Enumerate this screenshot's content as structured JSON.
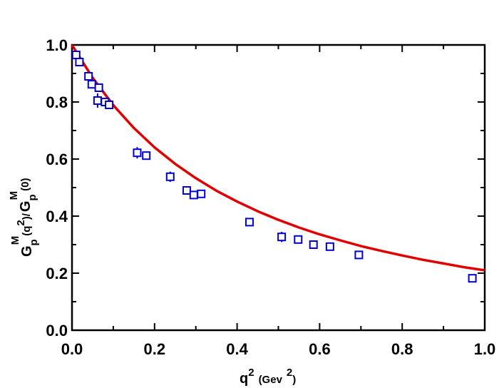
{
  "chart_data": {
    "type": "scatter",
    "title": "",
    "xlabel": {
      "base": "q",
      "sup": "2",
      "unit": "(Gev",
      "unit_sup": "2",
      "unit_close": ")"
    },
    "ylabel": {
      "num_base": "G",
      "num_sub": "p",
      "num_sup": "M",
      "num_arg": "(q",
      "num_arg_sup": "2",
      "num_arg_close": ")/",
      "den_base": "G",
      "den_sub": "p",
      "den_sup": "M",
      "den_arg": "(0)"
    },
    "xlim": [
      0.0,
      1.0
    ],
    "ylim": [
      0.0,
      1.0
    ],
    "xticks": [
      "0.0",
      "0.2",
      "0.4",
      "0.6",
      "0.8",
      "1.0"
    ],
    "yticks": [
      "0.0",
      "0.2",
      "0.4",
      "0.6",
      "0.8",
      "1.0"
    ],
    "grid": false,
    "series": [
      {
        "kind": "line",
        "color": "#e00000",
        "form": "dipole",
        "x": [
          0.0,
          0.05,
          0.1,
          0.15,
          0.2,
          0.25,
          0.3,
          0.35,
          0.4,
          0.45,
          0.5,
          0.55,
          0.6,
          0.65,
          0.7,
          0.75,
          0.8,
          0.85,
          0.9,
          0.95,
          1.0
        ],
        "y": [
          1.0,
          0.885,
          0.789,
          0.709,
          0.641,
          0.583,
          0.533,
          0.489,
          0.451,
          0.417,
          0.387,
          0.36,
          0.336,
          0.315,
          0.295,
          0.278,
          0.262,
          0.247,
          0.234,
          0.221,
          0.21
        ]
      },
      {
        "kind": "points",
        "color": "#0000d0",
        "marker": "open-square",
        "x": [
          0.01,
          0.018,
          0.04,
          0.048,
          0.062,
          0.065,
          0.08,
          0.09,
          0.158,
          0.18,
          0.238,
          0.278,
          0.295,
          0.313,
          0.43,
          0.508,
          0.548,
          0.585,
          0.625,
          0.695,
          0.97
        ],
        "y": [
          0.965,
          0.94,
          0.89,
          0.862,
          0.805,
          0.85,
          0.8,
          0.79,
          0.622,
          0.612,
          0.538,
          0.49,
          0.474,
          0.478,
          0.379,
          0.327,
          0.318,
          0.3,
          0.293,
          0.264,
          0.182
        ],
        "err": [
          0.008,
          0.008,
          0.014,
          0.01,
          0.025,
          0.008,
          0.008,
          0.008,
          0.02,
          0.01,
          0.018,
          0.01,
          0.01,
          0.008,
          0.008,
          0.018,
          0.008,
          0.015,
          0.008,
          0.008,
          0.008
        ]
      }
    ]
  }
}
